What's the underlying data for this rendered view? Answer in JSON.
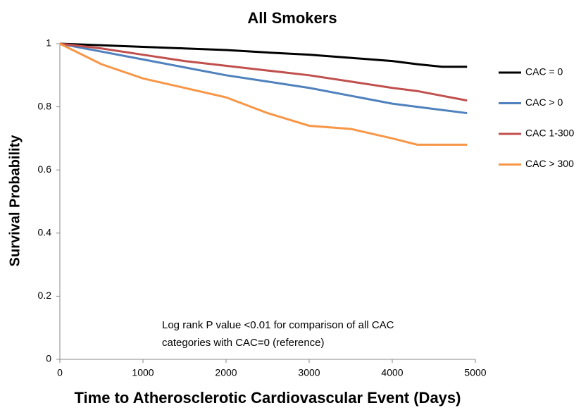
{
  "chart_data": {
    "type": "line",
    "title": "All Smokers",
    "xlabel": "Time to Atherosclerotic Cardiovascular Event (Days)",
    "ylabel": "Survival Probability",
    "annotation": [
      "Log rank P value <0.01 for comparison of all CAC",
      "categories with CAC=0 (reference)"
    ],
    "x": [
      0,
      500,
      1000,
      1500,
      2000,
      2500,
      3000,
      3500,
      4000,
      4300,
      4600,
      4900
    ],
    "series": [
      {
        "name": "CAC = 0",
        "color": "#000000",
        "values": [
          1,
          0.995,
          0.99,
          0.985,
          0.98,
          0.972,
          0.965,
          0.955,
          0.945,
          0.935,
          0.927,
          0.927
        ]
      },
      {
        "name": "CAC > 0",
        "color": "#4f81bd",
        "values": [
          1,
          0.975,
          0.95,
          0.925,
          0.9,
          0.88,
          0.86,
          0.835,
          0.81,
          0.8,
          0.79,
          0.78
        ]
      },
      {
        "name": "CAC 1-300",
        "color": "#c0504d",
        "values": [
          1,
          0.985,
          0.965,
          0.945,
          0.93,
          0.915,
          0.9,
          0.88,
          0.86,
          0.85,
          0.835,
          0.82
        ]
      },
      {
        "name": "CAC > 300",
        "color": "#f79646",
        "values": [
          1,
          0.935,
          0.89,
          0.86,
          0.83,
          0.78,
          0.74,
          0.73,
          0.7,
          0.68,
          0.68,
          0.68
        ]
      }
    ],
    "xlim": [
      0,
      5000
    ],
    "xticks": [
      0,
      1000,
      2000,
      3000,
      4000,
      5000
    ],
    "ylim": [
      0,
      1
    ],
    "yticks": [
      0,
      0.2,
      0.4,
      0.6,
      0.8,
      1
    ],
    "grid": false,
    "legend": "right"
  }
}
